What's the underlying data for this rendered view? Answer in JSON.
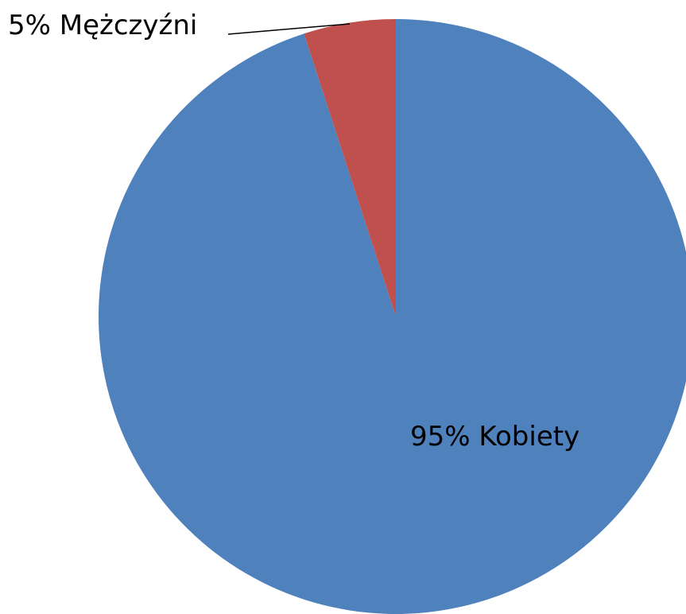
{
  "chart_data": {
    "type": "pie",
    "categories": [
      "Kobiety",
      "Mężczyźni"
    ],
    "values": [
      95,
      5
    ],
    "value_labels": [
      "95%",
      "5%"
    ],
    "colors": [
      "#4f81bd",
      "#c0504d"
    ]
  }
}
